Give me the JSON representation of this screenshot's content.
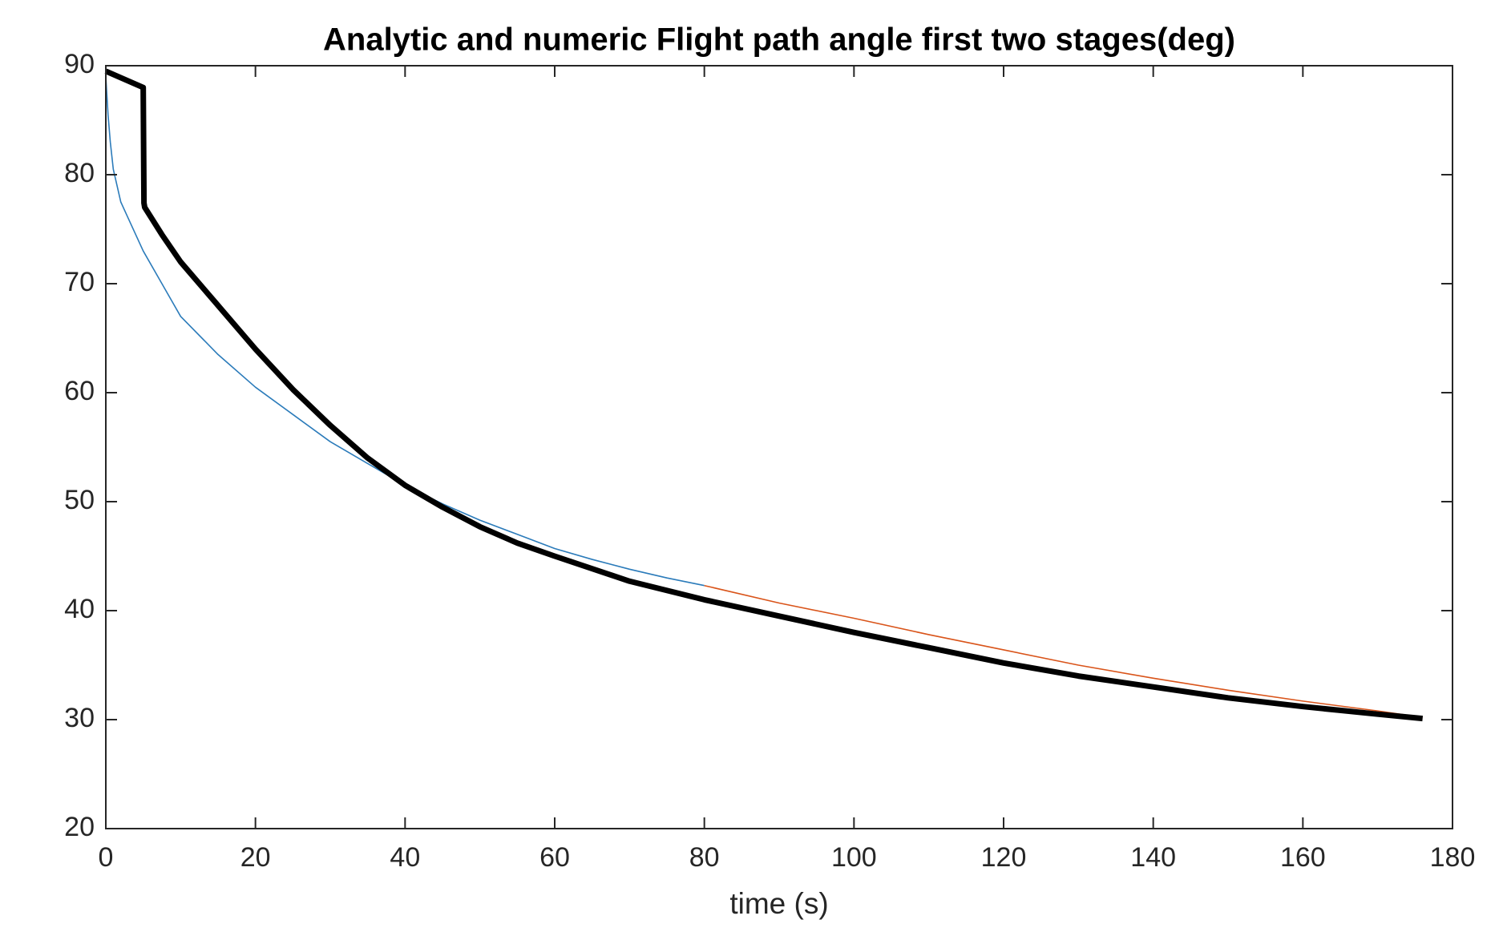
{
  "chart_data": {
    "type": "line",
    "title": "Analytic and numeric Flight path angle first two stages(deg)",
    "x_label": "time (s)",
    "xlim": [
      0,
      180
    ],
    "ylim": [
      20,
      90
    ],
    "xticks": [
      0,
      20,
      40,
      60,
      80,
      100,
      120,
      140,
      160,
      180
    ],
    "yticks": [
      20,
      30,
      40,
      50,
      60,
      70,
      80,
      90
    ],
    "grid": false,
    "series": [
      {
        "color": "#2b7bba",
        "x": [
          0,
          0.3,
          0.6,
          1,
          1.5,
          2,
          3,
          5,
          7.5,
          10,
          15,
          20,
          25,
          30,
          35,
          40,
          45,
          50,
          55,
          60,
          65,
          70,
          75,
          80
        ],
        "values": [
          89,
          85.5,
          83,
          80.5,
          79,
          77.5,
          76,
          73,
          70,
          67,
          63.5,
          60.5,
          58,
          55.5,
          53.5,
          51.5,
          49.8,
          48.3,
          47,
          45.7,
          44.7,
          43.8,
          43,
          42.3
        ]
      },
      {
        "color": "#d9541a",
        "x": [
          80,
          90,
          100,
          110,
          120,
          130,
          140,
          150,
          160,
          170,
          176
        ],
        "values": [
          42.3,
          40.7,
          39.3,
          37.8,
          36.4,
          35,
          33.8,
          32.7,
          31.7,
          30.8,
          30.2
        ]
      },
      {
        "color": "#000000",
        "x": [
          0,
          5,
          5.1,
          5.2,
          7.5,
          10,
          15,
          20,
          25,
          30,
          35,
          40,
          45,
          50,
          55,
          60,
          70,
          80,
          90,
          100,
          110,
          120,
          130,
          140,
          150,
          160,
          170,
          176
        ],
        "values": [
          89.5,
          88,
          77.4,
          77,
          74.5,
          72,
          68,
          64,
          60.3,
          57,
          54,
          51.5,
          49.5,
          47.7,
          46.2,
          45,
          42.7,
          41,
          39.5,
          38,
          36.6,
          35.2,
          34,
          33,
          32,
          31.2,
          30.5,
          30.1
        ]
      }
    ]
  }
}
